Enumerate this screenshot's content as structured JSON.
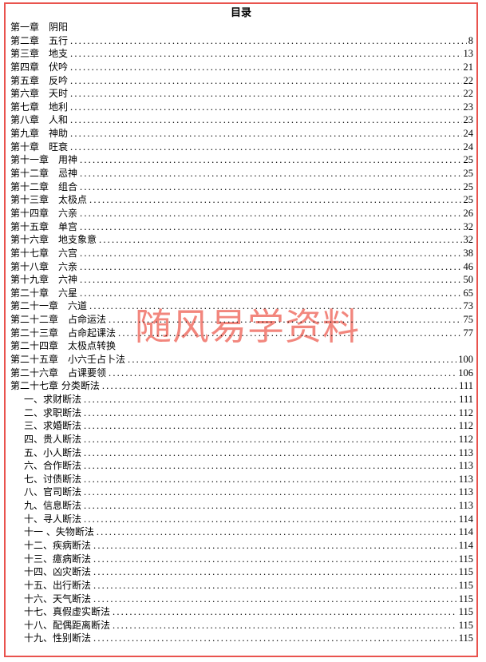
{
  "page": {
    "title": "目录",
    "watermark": "随风易学资料",
    "colors": {
      "border": "#e9534e",
      "watermark": "#f2867d",
      "text": "#000000"
    }
  },
  "toc": {
    "entries": [
      {
        "label": "第一章　阴阳",
        "page": "",
        "level": 1
      },
      {
        "label": "第二章　五行",
        "page": "8",
        "level": 1
      },
      {
        "label": "第三章　地支",
        "page": "13",
        "level": 1
      },
      {
        "label": "第四章　伏吟",
        "page": "21",
        "level": 1
      },
      {
        "label": "第五章　反吟",
        "page": "22",
        "level": 1
      },
      {
        "label": "第六章　天时",
        "page": "22",
        "level": 1
      },
      {
        "label": "第七章　地利",
        "page": "23",
        "level": 1
      },
      {
        "label": "第八章　人和",
        "page": "23",
        "level": 1
      },
      {
        "label": "第九章　神助",
        "page": "24",
        "level": 1
      },
      {
        "label": "第十章　旺衰",
        "page": "24",
        "level": 1
      },
      {
        "label": "第十一章　用神",
        "page": "25",
        "level": 1
      },
      {
        "label": "第十二章　忌神",
        "page": "25",
        "level": 1
      },
      {
        "label": "第十二章　组合",
        "page": "25",
        "level": 1
      },
      {
        "label": "第十三章　太极点",
        "page": "25",
        "level": 1
      },
      {
        "label": "第十四章　六亲",
        "page": "26",
        "level": 1
      },
      {
        "label": "第十五章　单宫",
        "page": "32",
        "level": 1
      },
      {
        "label": "第十六章　地支象意",
        "page": "32",
        "level": 1
      },
      {
        "label": "第十七章　六宫",
        "page": "38",
        "level": 1
      },
      {
        "label": "第十八章　六亲",
        "page": "46",
        "level": 1
      },
      {
        "label": "第十九章　六神",
        "page": "50",
        "level": 1
      },
      {
        "label": "第二十章　六星",
        "page": "65",
        "level": 1
      },
      {
        "label": "第二十一章　六道",
        "page": "73",
        "level": 1
      },
      {
        "label": "第二十二章　占命运法",
        "page": "75",
        "level": 1
      },
      {
        "label": "第二十三章　占命起课法",
        "page": "77",
        "level": 1
      },
      {
        "label": "第二十四章　太极点转换",
        "page": "",
        "level": 1
      },
      {
        "label": "第二十五章　小六壬占卜法",
        "page": "100",
        "level": 1
      },
      {
        "label": "第二十六章　占课要领",
        "page": "106",
        "level": 1
      },
      {
        "label": "第二十七章 分类断法",
        "page": "111",
        "level": 1
      },
      {
        "label": "一、求财断法",
        "page": "111",
        "level": 2
      },
      {
        "label": "二、求职断法",
        "page": "112",
        "level": 2
      },
      {
        "label": "三、求婚断法",
        "page": "112",
        "level": 2
      },
      {
        "label": "四、贵人断法",
        "page": "112",
        "level": 2
      },
      {
        "label": "五、小人断法",
        "page": "113",
        "level": 2
      },
      {
        "label": "六、合作断法",
        "page": "113",
        "level": 2
      },
      {
        "label": "七、讨债断法",
        "page": "113",
        "level": 2
      },
      {
        "label": "八、官司断法",
        "page": "113",
        "level": 2
      },
      {
        "label": "九、信息断法",
        "page": "113",
        "level": 2
      },
      {
        "label": "十、寻人断法",
        "page": "114",
        "level": 2
      },
      {
        "label": "十一 、失物断法",
        "page": "114",
        "level": 2
      },
      {
        "label": "十二、疾病断法",
        "page": "114",
        "level": 2
      },
      {
        "label": "十三、癔病断法",
        "page": "115",
        "level": 2
      },
      {
        "label": "十四、凶灾断法",
        "page": "115",
        "level": 2
      },
      {
        "label": "十五、出行断法",
        "page": "115",
        "level": 2
      },
      {
        "label": "十六、天气断法",
        "page": "115",
        "level": 2
      },
      {
        "label": "十七、真假虚实断法",
        "page": "115",
        "level": 2
      },
      {
        "label": "十八、配偶距离断法",
        "page": "115",
        "level": 2
      },
      {
        "label": "十九、性别断法",
        "page": "115",
        "level": 2
      }
    ]
  }
}
